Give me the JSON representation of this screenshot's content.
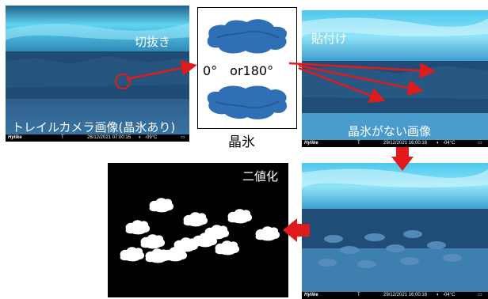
{
  "panels": {
    "trail_camera": {
      "crop_label": "切抜き",
      "caption": "トレイルカメラ画像(晶氷あり)",
      "status": {
        "brand": "Hylike",
        "mode": "T",
        "datetime": "26/12/2021 07:00:15",
        "temp": "-09°C"
      }
    },
    "crystal_ice": {
      "rotation_label": "0°　or180°",
      "caption": "晶氷"
    },
    "no_ice": {
      "paste_label": "貼付け",
      "caption": "晶氷がない画像",
      "status": {
        "brand": "Hylike",
        "mode": "T",
        "datetime": "29/12/2021 16:00:16",
        "temp": "-04°C"
      }
    },
    "pasted": {
      "status": {
        "brand": "Hylike",
        "mode": "T",
        "datetime": "29/12/2021 16:00:16",
        "temp": "-04°C"
      }
    },
    "binary": {
      "label": "二値化"
    }
  },
  "colors": {
    "arrow_red": "#e01b1b",
    "ice_blue": "#2f6fb5",
    "water_blue": "#3a73a0",
    "snow_cyan": "#4fd0f0"
  }
}
